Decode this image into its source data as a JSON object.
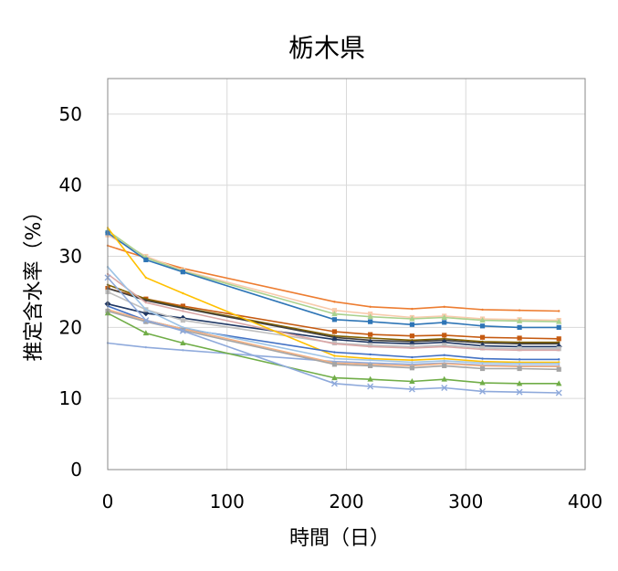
{
  "chart_data": {
    "type": "line",
    "title": "栃木県",
    "xlabel": "時間（日）",
    "ylabel": "推定含水率（%）",
    "xlim": [
      0,
      400
    ],
    "ylim": [
      0,
      55
    ],
    "x_ticks": [
      0,
      100,
      200,
      300,
      400
    ],
    "y_ticks": [
      0,
      10,
      20,
      30,
      40,
      50
    ],
    "grid": true,
    "legend": "none",
    "x": [
      0,
      32,
      63,
      190,
      220,
      255,
      282,
      314,
      345,
      378
    ],
    "series": [
      {
        "color": "#ED7D31",
        "marker": "none",
        "values": [
          31.5,
          29.8,
          28.3,
          23.6,
          22.9,
          22.6,
          22.9,
          22.5,
          22.4,
          22.3
        ]
      },
      {
        "color": "#F8CBAD",
        "marker": "square",
        "values": [
          33.0,
          30.0,
          28.0,
          22.4,
          21.9,
          21.4,
          21.6,
          21.2,
          21.1,
          21.0
        ]
      },
      {
        "color": "#A9D18E",
        "marker": "triangle",
        "values": [
          33.6,
          29.8,
          27.9,
          21.9,
          21.5,
          21.2,
          21.4,
          21.0,
          20.9,
          20.8
        ]
      },
      {
        "color": "#2E75B6",
        "marker": "square",
        "values": [
          33.3,
          29.5,
          27.8,
          21.1,
          20.8,
          20.4,
          20.7,
          20.2,
          20.0,
          20.0
        ]
      },
      {
        "color": "#C55A11",
        "marker": "square",
        "values": [
          25.5,
          24.0,
          23.0,
          19.4,
          19.0,
          18.8,
          18.9,
          18.6,
          18.5,
          18.4
        ]
      },
      {
        "color": "#7F6000",
        "marker": "none",
        "values": [
          26.0,
          24.0,
          22.8,
          18.8,
          18.5,
          18.2,
          18.4,
          18.0,
          17.9,
          17.9
        ]
      },
      {
        "color": "#404040",
        "marker": "none",
        "values": [
          25.5,
          23.8,
          22.7,
          18.6,
          18.2,
          18.0,
          18.2,
          17.8,
          17.7,
          17.7
        ]
      },
      {
        "color": "#203864",
        "marker": "diamond",
        "values": [
          23.3,
          22.0,
          21.3,
          18.3,
          17.9,
          17.7,
          17.9,
          17.4,
          17.3,
          17.3
        ]
      },
      {
        "color": "#BFBFBF",
        "marker": "square",
        "values": [
          25.0,
          22.5,
          21.0,
          17.8,
          17.5,
          17.3,
          17.5,
          17.1,
          17.0,
          17.0
        ]
      },
      {
        "color": "#D9A6A6",
        "marker": "none",
        "values": [
          27.5,
          23.5,
          22.3,
          17.7,
          17.3,
          17.1,
          17.3,
          16.9,
          16.8,
          16.8
        ]
      },
      {
        "color": "#FFC000",
        "marker": "none",
        "values": [
          34.0,
          27.0,
          24.8,
          16.0,
          15.6,
          15.4,
          15.6,
          15.2,
          15.1,
          15.1
        ]
      },
      {
        "color": "#4472C4",
        "marker": "none",
        "values": [
          23.0,
          21.0,
          19.8,
          16.5,
          16.2,
          15.8,
          16.1,
          15.6,
          15.5,
          15.5
        ]
      },
      {
        "color": "#9DC3E6",
        "marker": "none",
        "values": [
          28.5,
          22.5,
          20.0,
          15.6,
          15.4,
          15.1,
          15.3,
          15.0,
          14.9,
          14.9
        ]
      },
      {
        "color": "#8FAADC",
        "marker": "none",
        "values": [
          17.8,
          17.2,
          16.8,
          15.2,
          15.0,
          14.8,
          15.0,
          14.7,
          14.6,
          14.6
        ]
      },
      {
        "color": "#F4B183",
        "marker": "none",
        "values": [
          22.5,
          21.0,
          19.8,
          15.0,
          14.8,
          14.6,
          14.9,
          14.6,
          14.5,
          14.5
        ]
      },
      {
        "color": "#A5A5A5",
        "marker": "square",
        "values": [
          22.3,
          20.8,
          19.6,
          14.8,
          14.6,
          14.3,
          14.6,
          14.2,
          14.2,
          14.1
        ]
      },
      {
        "color": "#70AD47",
        "marker": "triangle",
        "values": [
          22.0,
          19.2,
          17.8,
          12.9,
          12.7,
          12.4,
          12.7,
          12.2,
          12.1,
          12.1
        ]
      },
      {
        "color": "#8EA9DB",
        "marker": "x",
        "values": [
          27.0,
          21.0,
          19.5,
          12.1,
          11.7,
          11.3,
          11.5,
          11.0,
          10.9,
          10.8
        ]
      }
    ]
  }
}
